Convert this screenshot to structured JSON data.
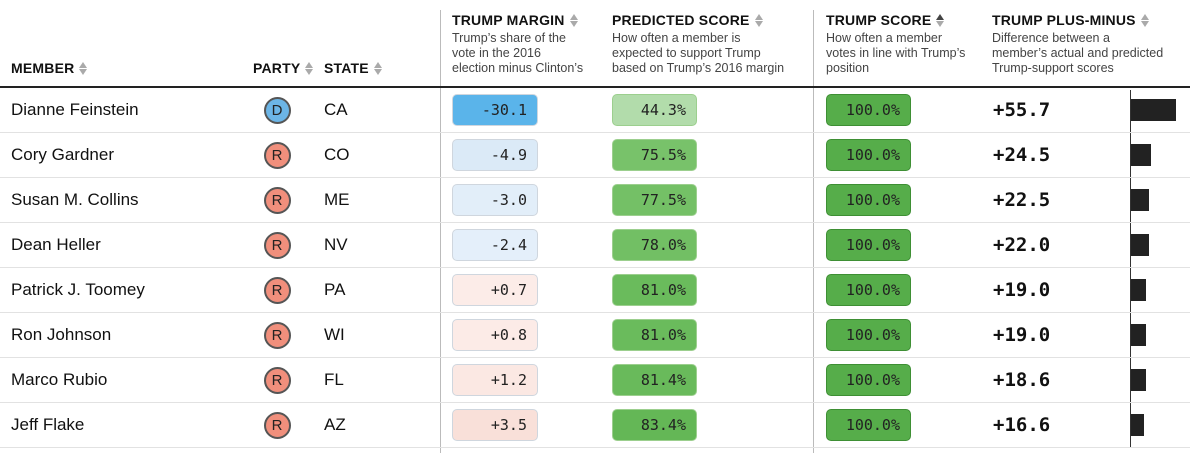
{
  "headers": {
    "member": "MEMBER",
    "party": "PARTY",
    "state": "STATE",
    "margin_title": "TRUMP MARGIN",
    "margin_desc": [
      "Trump’s share of the",
      "vote in the 2016",
      "election minus Clinton’s"
    ],
    "pred_title": "PREDICTED SCORE",
    "pred_desc": [
      "How often a member is",
      "expected to support Trump",
      "based on Trump’s 2016 margin"
    ],
    "score_title": "TRUMP SCORE",
    "score_desc": [
      "How often a member",
      "votes in line with Trump’s",
      "position"
    ],
    "pm_title": "TRUMP PLUS-MINUS",
    "pm_desc": [
      "Difference between a",
      "member’s actual and predicted",
      "Trump-support scores"
    ]
  },
  "colors": {
    "dem_badge": "#6cb5e6",
    "rep_badge": "#f08f7c",
    "score_green": "#56ad4a"
  },
  "rows": [
    {
      "name": "Dianne Feinstein",
      "party": "D",
      "state": "CA",
      "margin": "-30.1",
      "predicted": "44.3%",
      "score": "100.0%",
      "plus_minus": "+55.7",
      "plus_minus_value": 55.7,
      "margin_color": "#5ab4ea",
      "pred_color": "#b2dcab"
    },
    {
      "name": "Cory Gardner",
      "party": "R",
      "state": "CO",
      "margin": "-4.9",
      "predicted": "75.5%",
      "score": "100.0%",
      "plus_minus": "+24.5",
      "plus_minus_value": 24.5,
      "margin_color": "#dbeaf7",
      "pred_color": "#78c26a"
    },
    {
      "name": "Susan M. Collins",
      "party": "R",
      "state": "ME",
      "margin": "-3.0",
      "predicted": "77.5%",
      "score": "100.0%",
      "plus_minus": "+22.5",
      "plus_minus_value": 22.5,
      "margin_color": "#e2eef9",
      "pred_color": "#74c066"
    },
    {
      "name": "Dean Heller",
      "party": "R",
      "state": "NV",
      "margin": "-2.4",
      "predicted": "78.0%",
      "score": "100.0%",
      "plus_minus": "+22.0",
      "plus_minus_value": 22.0,
      "margin_color": "#e4effa",
      "pred_color": "#72bf64"
    },
    {
      "name": "Patrick J. Toomey",
      "party": "R",
      "state": "PA",
      "margin": "+0.7",
      "predicted": "81.0%",
      "score": "100.0%",
      "plus_minus": "+19.0",
      "plus_minus_value": 19.0,
      "margin_color": "#fcece8",
      "pred_color": "#6abb5c"
    },
    {
      "name": "Ron Johnson",
      "party": "R",
      "state": "WI",
      "margin": "+0.8",
      "predicted": "81.0%",
      "score": "100.0%",
      "plus_minus": "+19.0",
      "plus_minus_value": 19.0,
      "margin_color": "#fcebe7",
      "pred_color": "#6abb5c"
    },
    {
      "name": "Marco Rubio",
      "party": "R",
      "state": "FL",
      "margin": "+1.2",
      "predicted": "81.4%",
      "score": "100.0%",
      "plus_minus": "+18.6",
      "plus_minus_value": 18.6,
      "margin_color": "#fbe8e3",
      "pred_color": "#69ba5b"
    },
    {
      "name": "Jeff Flake",
      "party": "R",
      "state": "AZ",
      "margin": "+3.5",
      "predicted": "83.4%",
      "score": "100.0%",
      "plus_minus": "+16.6",
      "plus_minus_value": 16.6,
      "margin_color": "#f9e0d9",
      "pred_color": "#64b756"
    }
  ]
}
